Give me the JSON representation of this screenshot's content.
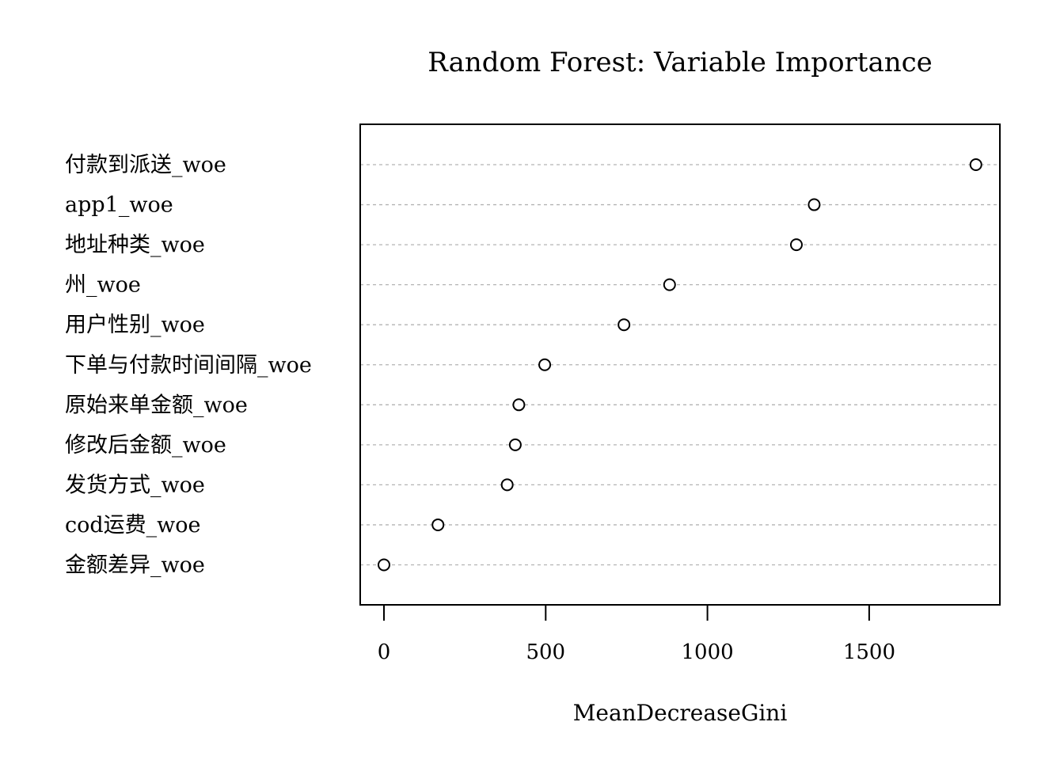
{
  "chart_data": {
    "type": "scatter",
    "subtype": "dotchart",
    "title": "Random Forest: Variable Importance",
    "xlabel": "MeanDecreaseGini",
    "ylabel": "",
    "xlim": [
      -75,
      1900
    ],
    "xticks": [
      0,
      500,
      1000,
      1500
    ],
    "grid": "dotted horizontal lines",
    "legend": "none",
    "categories": [
      "付款到派送_woe",
      "app1_woe",
      "地址种类_woe",
      "州_woe",
      "用户性别_woe",
      "下单与付款时间间隔_woe",
      "原始来单金额_woe",
      "修改后金额_woe",
      "发货方式_woe",
      "cod运费_woe",
      "金额差异_woe"
    ],
    "values": [
      1830,
      1330,
      1275,
      883,
      742,
      497,
      417,
      406,
      381,
      167,
      0
    ]
  }
}
